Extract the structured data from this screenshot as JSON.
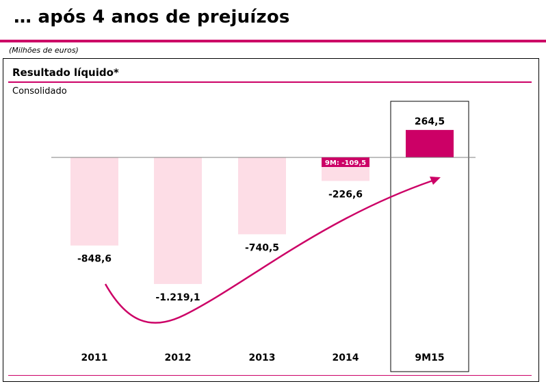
{
  "page": {
    "title": "… após 4 anos de prejuízos",
    "units_note": "(Milhões de euros)"
  },
  "colors": {
    "accent": "#cc0066",
    "negative_bar": "#fddde6",
    "positive_bar": "#cc0066",
    "badge": "#cc0066",
    "arrow": "#cc0066"
  },
  "chart_data": {
    "type": "bar",
    "title": "Resultado líquido*",
    "subtitle": "Consolidado",
    "categories": [
      "2011",
      "2012",
      "2013",
      "2014",
      "9M15"
    ],
    "values": [
      -848.6,
      -1219.1,
      -740.5,
      -226.6,
      264.5
    ],
    "value_labels": [
      "-848,6",
      "-1.219,1",
      "-740,5",
      "-226,6",
      "264,5"
    ],
    "highlighted_category": "9M15",
    "annotations": [
      {
        "category": "2014",
        "value": -109.5,
        "text": "9M: -109,5"
      }
    ],
    "trend_arrow": true,
    "xlabel": "",
    "ylabel": "",
    "grid": false,
    "legend": "none"
  }
}
